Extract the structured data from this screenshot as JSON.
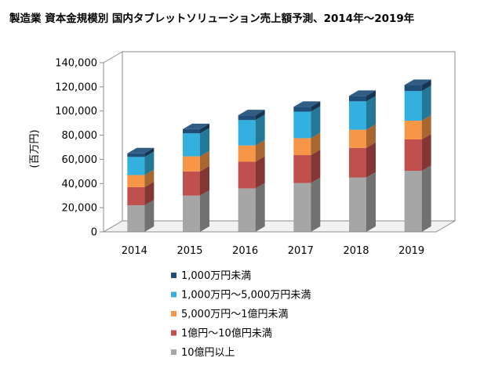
{
  "chart_data": {
    "type": "bar",
    "stacked": true,
    "style": "3d-column",
    "title": "製造業 資本金規模別 国内タブレットソリューション売上額予測、2014年～2019年",
    "ylabel": "(百万円)",
    "xlabel": "",
    "ylim": [
      0,
      140000
    ],
    "yticks": [
      "0",
      "20,000",
      "40,000",
      "60,000",
      "80,000",
      "100,000",
      "120,000",
      "140,000"
    ],
    "ytick_values": [
      0,
      20000,
      40000,
      60000,
      80000,
      100000,
      120000,
      140000
    ],
    "categories": [
      "2014",
      "2015",
      "2016",
      "2017",
      "2018",
      "2019"
    ],
    "grid": false,
    "legend_position": "bottom",
    "series": [
      {
        "name": "10億円以上",
        "color": "#a6a6a6",
        "values": [
          22000,
          30000,
          36000,
          40500,
          45000,
          50500
        ]
      },
      {
        "name": "1億円～10億円未満",
        "color": "#c0504d",
        "values": [
          15000,
          20000,
          22000,
          23000,
          24500,
          26000
        ]
      },
      {
        "name": "5,000万円～1億円未満",
        "color": "#f79646",
        "values": [
          10000,
          12500,
          13500,
          14000,
          15000,
          15500
        ]
      },
      {
        "name": "1,000万円～5,000万円未満",
        "color": "#33b0e0",
        "values": [
          15000,
          19000,
          21000,
          22000,
          23500,
          24500
        ]
      },
      {
        "name": "1,000万円未満",
        "color": "#1f4e79",
        "values": [
          3000,
          3500,
          4000,
          4000,
          4500,
          5000
        ]
      }
    ]
  }
}
